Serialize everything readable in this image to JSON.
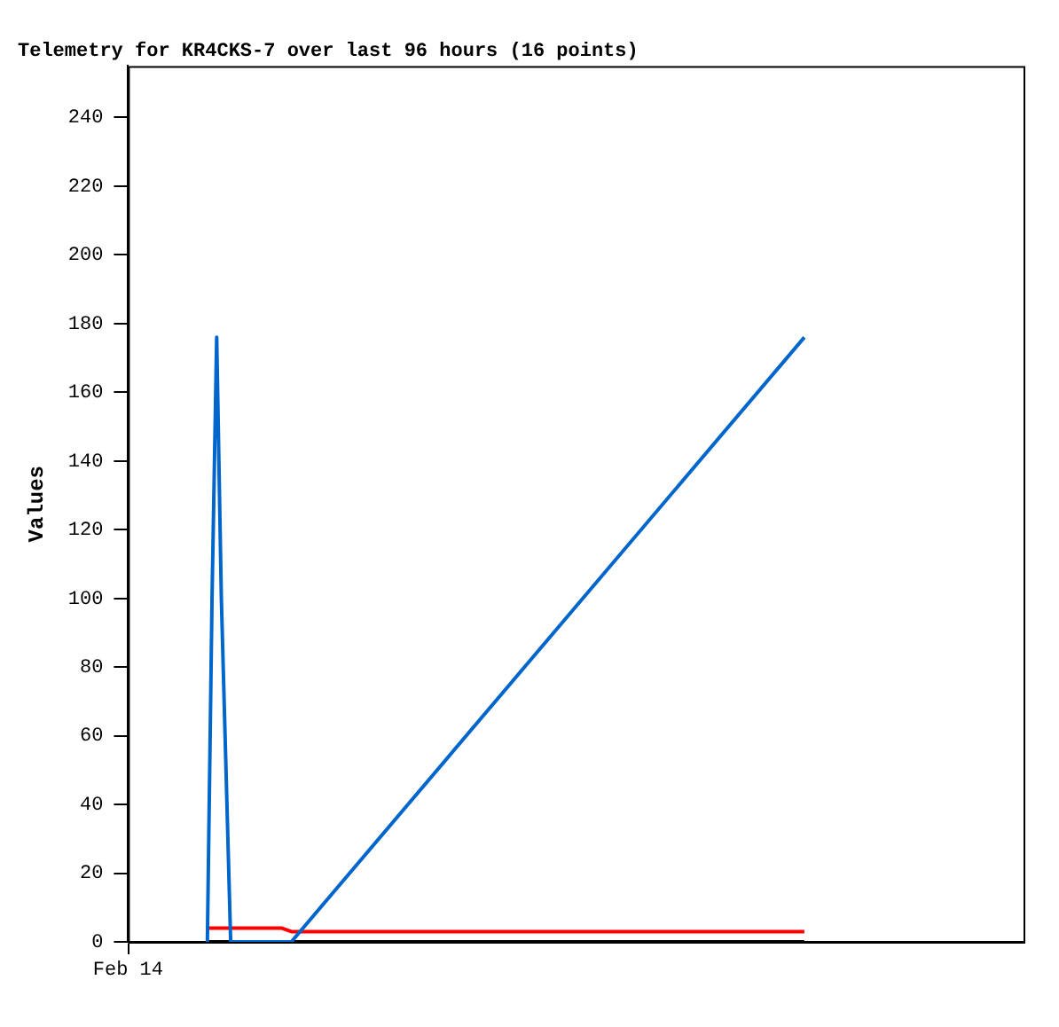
{
  "chart_data": {
    "type": "line",
    "title": "Telemetry for KR4CKS-7 over last 96 hours (16 points)",
    "ylabel": "Values",
    "annotations": [
      "Feb 14"
    ],
    "categories": [
      null,
      null,
      null,
      null,
      null,
      null,
      null,
      null,
      null,
      null,
      null,
      null,
      null,
      null,
      null,
      null,
      null,
      null,
      null,
      null,
      null,
      null,
      null,
      null,
      null,
      null,
      null,
      null,
      null,
      null,
      null,
      null,
      null,
      null,
      null,
      null,
      null,
      null,
      null,
      null,
      null,
      null,
      null,
      null,
      null,
      null,
      null,
      null,
      null,
      null,
      null,
      null,
      null,
      null,
      null,
      null,
      null,
      null,
      null,
      null,
      null,
      null,
      null,
      null,
      null,
      null,
      null,
      null,
      null,
      null,
      null,
      null,
      null,
      null,
      null,
      null,
      null,
      null,
      null,
      null,
      null,
      null,
      null,
      null,
      null,
      null,
      null,
      null,
      null,
      null,
      null,
      null,
      null,
      null,
      null,
      null,
      null,
      null,
      null,
      null,
      null,
      null,
      null,
      null,
      null,
      null,
      null,
      null,
      null,
      null,
      null,
      null,
      null,
      null,
      null,
      null,
      null,
      null,
      null,
      null,
      null,
      null,
      null,
      null,
      null,
      null,
      null,
      null,
      null,
      null,
      null,
      null,
      null,
      null,
      null,
      null,
      null,
      null,
      null,
      null,
      null,
      null,
      null,
      null,
      null,
      null,
      null,
      null,
      null,
      null,
      null,
      null,
      null,
      null,
      null,
      null,
      null,
      null,
      null,
      null,
      null,
      null,
      null,
      null,
      null,
      null,
      null,
      null,
      null,
      null,
      null,
      null,
      null,
      null,
      null,
      null,
      null,
      null,
      null,
      null,
      null,
      null,
      null,
      null,
      null,
      null,
      null,
      null,
      null,
      null,
      null,
      null,
      null
    ],
    "ylim": [
      0,
      255
    ],
    "yticks": [
      0,
      20,
      40,
      60,
      80,
      100,
      120,
      140,
      160,
      180,
      200,
      220,
      240
    ],
    "grid": false,
    "legend": false,
    "marker": "none",
    "line_style": "solid",
    "series": [
      {
        "color": "#000000",
        "values": [
          null,
          null,
          null,
          null,
          null,
          null,
          null,
          null,
          null,
          null,
          null,
          null,
          null,
          null,
          null,
          null,
          null,
          0,
          null,
          null,
          null,
          null,
          null,
          null,
          null,
          null,
          null,
          null,
          null,
          null,
          null,
          null,
          null,
          null,
          null,
          null,
          null,
          null,
          null,
          null,
          null,
          null,
          null,
          null,
          null,
          null,
          null,
          null,
          null,
          null,
          null,
          null,
          null,
          null,
          null,
          null,
          null,
          null,
          null,
          null,
          null,
          null,
          null,
          null,
          null,
          null,
          null,
          null,
          null,
          null,
          null,
          null,
          null,
          null,
          null,
          null,
          null,
          null,
          null,
          null,
          null,
          null,
          null,
          null,
          null,
          null,
          null,
          null,
          null,
          null,
          null,
          null,
          null,
          null,
          null,
          null,
          null,
          null,
          null,
          null,
          null,
          null,
          null,
          null,
          null,
          null,
          null,
          null,
          null,
          null,
          null,
          null,
          null,
          null,
          null,
          null,
          null,
          null,
          null,
          null,
          null,
          null,
          null,
          null,
          null,
          null,
          null,
          null,
          null,
          null,
          null,
          null,
          null,
          null,
          null,
          null,
          null,
          null,
          null,
          null,
          null,
          null,
          null,
          null,
          null,
          0,
          null,
          null,
          null,
          null,
          null,
          null,
          null,
          null,
          null,
          null,
          null,
          null,
          null,
          null,
          null,
          null,
          null,
          null,
          null,
          null,
          null,
          null,
          null,
          null,
          null,
          null,
          null,
          null,
          null,
          null,
          null,
          null,
          null,
          null,
          null,
          null,
          null,
          null,
          null,
          null,
          null,
          null,
          null,
          null,
          null,
          null,
          null
        ]
      },
      {
        "color": "#ff0000",
        "values": [
          null,
          null,
          null,
          null,
          null,
          null,
          null,
          null,
          null,
          null,
          null,
          null,
          null,
          null,
          null,
          null,
          null,
          4,
          null,
          null,
          null,
          null,
          null,
          null,
          null,
          null,
          null,
          null,
          null,
          null,
          null,
          null,
          null,
          4,
          null,
          3,
          null,
          null,
          null,
          null,
          null,
          null,
          null,
          null,
          null,
          null,
          null,
          null,
          null,
          null,
          null,
          null,
          null,
          null,
          null,
          null,
          null,
          null,
          null,
          null,
          null,
          null,
          null,
          null,
          null,
          null,
          null,
          null,
          null,
          null,
          null,
          null,
          null,
          null,
          null,
          null,
          null,
          null,
          null,
          null,
          null,
          null,
          null,
          null,
          null,
          null,
          null,
          null,
          null,
          null,
          null,
          null,
          null,
          null,
          null,
          null,
          null,
          null,
          null,
          null,
          null,
          null,
          null,
          null,
          null,
          null,
          null,
          null,
          null,
          null,
          null,
          null,
          null,
          null,
          null,
          null,
          null,
          null,
          null,
          null,
          null,
          null,
          null,
          null,
          null,
          null,
          null,
          null,
          null,
          null,
          null,
          null,
          null,
          null,
          null,
          null,
          null,
          null,
          null,
          null,
          null,
          null,
          null,
          null,
          null,
          3,
          null,
          null,
          null,
          null,
          null,
          null,
          null,
          null,
          null,
          null,
          null,
          null,
          null,
          null,
          null,
          null,
          null,
          null,
          null,
          null,
          null,
          null,
          null,
          null,
          null,
          null,
          null,
          null,
          null,
          null,
          null,
          null,
          null,
          null,
          null,
          null,
          null,
          null,
          null,
          null,
          null,
          null,
          null,
          null,
          null,
          null,
          null
        ]
      },
      {
        "color": "#0066cc",
        "values": [
          null,
          null,
          null,
          null,
          null,
          null,
          null,
          null,
          null,
          null,
          null,
          null,
          null,
          null,
          null,
          null,
          null,
          0,
          100,
          176,
          100,
          50,
          0,
          null,
          null,
          null,
          null,
          null,
          null,
          null,
          null,
          null,
          null,
          null,
          null,
          0,
          null,
          null,
          null,
          null,
          null,
          null,
          null,
          null,
          null,
          null,
          null,
          null,
          null,
          null,
          null,
          null,
          null,
          null,
          null,
          null,
          null,
          null,
          null,
          null,
          null,
          null,
          null,
          null,
          null,
          null,
          null,
          null,
          null,
          null,
          null,
          null,
          null,
          null,
          null,
          null,
          null,
          null,
          null,
          null,
          null,
          null,
          null,
          null,
          null,
          null,
          null,
          null,
          null,
          null,
          null,
          null,
          null,
          null,
          null,
          null,
          null,
          null,
          null,
          null,
          null,
          null,
          null,
          null,
          null,
          null,
          null,
          null,
          null,
          null,
          null,
          null,
          null,
          null,
          null,
          null,
          null,
          null,
          null,
          null,
          null,
          null,
          null,
          null,
          null,
          null,
          null,
          null,
          null,
          null,
          null,
          null,
          null,
          null,
          null,
          null,
          null,
          null,
          null,
          null,
          null,
          null,
          null,
          null,
          null,
          176,
          null,
          null,
          null,
          null,
          null,
          null,
          null,
          null,
          null,
          null,
          null,
          null,
          null,
          null,
          null,
          null,
          null,
          null,
          null,
          null,
          null,
          null,
          null,
          null,
          null,
          null,
          null,
          null,
          null,
          null,
          null,
          null,
          null,
          null,
          null,
          null,
          null,
          null,
          null,
          null,
          null,
          null,
          null,
          null,
          null,
          null,
          null
        ]
      }
    ]
  }
}
